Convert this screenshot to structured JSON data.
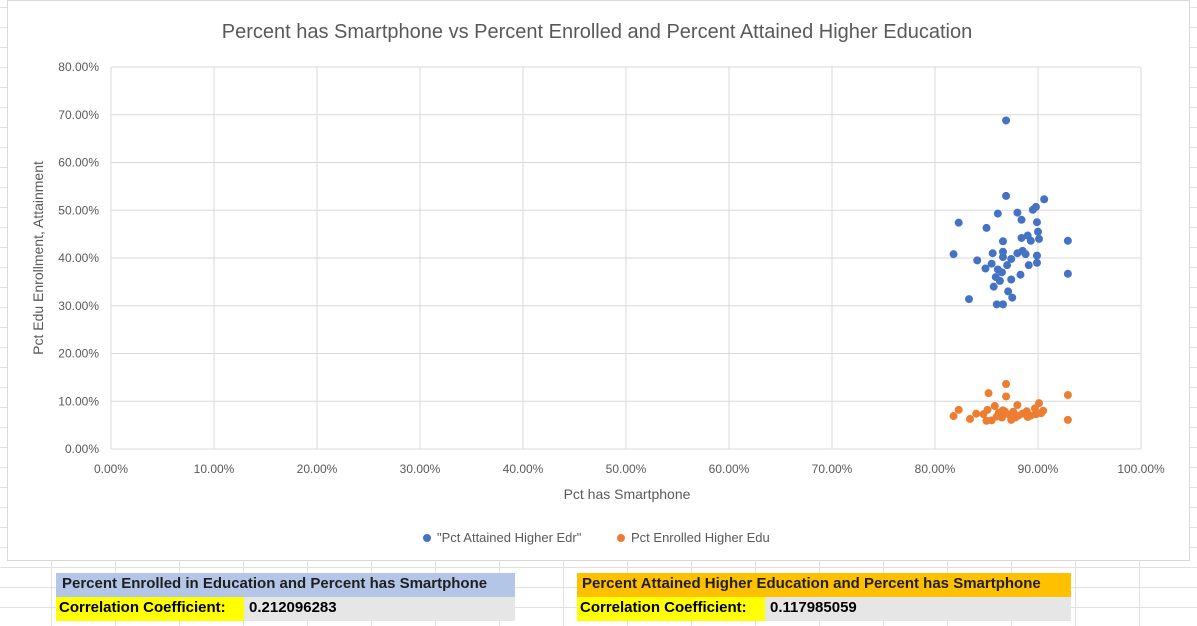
{
  "chart_data": {
    "type": "scatter",
    "title": "Percent has Smartphone vs Percent Enrolled and Percent Attained Higher Education",
    "xlabel": "Pct has Smartphone",
    "ylabel": "Pct Edu Enrollment, Attainment",
    "xlim": [
      0,
      1
    ],
    "ylim": [
      0,
      0.8
    ],
    "x_ticks": [
      "0.00%",
      "10.00%",
      "20.00%",
      "30.00%",
      "40.00%",
      "50.00%",
      "60.00%",
      "70.00%",
      "80.00%",
      "90.00%",
      "100.00%"
    ],
    "y_ticks": [
      "0.00%",
      "10.00%",
      "20.00%",
      "30.00%",
      "40.00%",
      "50.00%",
      "60.00%",
      "70.00%",
      "80.00%"
    ],
    "grid": true,
    "legend_position": "bottom",
    "series": [
      {
        "name": "\"Pct Attained Higher Edr\"",
        "color": "#4472c4",
        "points": [
          [
            0.869,
            0.688
          ],
          [
            0.869,
            0.53
          ],
          [
            0.906,
            0.523
          ],
          [
            0.898,
            0.507
          ],
          [
            0.895,
            0.501
          ],
          [
            0.861,
            0.493
          ],
          [
            0.88,
            0.495
          ],
          [
            0.823,
            0.474
          ],
          [
            0.884,
            0.48
          ],
          [
            0.899,
            0.475
          ],
          [
            0.85,
            0.463
          ],
          [
            0.9,
            0.455
          ],
          [
            0.89,
            0.447
          ],
          [
            0.901,
            0.44
          ],
          [
            0.866,
            0.435
          ],
          [
            0.884,
            0.442
          ],
          [
            0.893,
            0.436
          ],
          [
            0.929,
            0.436
          ],
          [
            0.885,
            0.415
          ],
          [
            0.866,
            0.413
          ],
          [
            0.88,
            0.41
          ],
          [
            0.888,
            0.408
          ],
          [
            0.818,
            0.408
          ],
          [
            0.856,
            0.41
          ],
          [
            0.899,
            0.405
          ],
          [
            0.866,
            0.402
          ],
          [
            0.841,
            0.395
          ],
          [
            0.874,
            0.398
          ],
          [
            0.855,
            0.388
          ],
          [
            0.891,
            0.385
          ],
          [
            0.899,
            0.39
          ],
          [
            0.87,
            0.385
          ],
          [
            0.849,
            0.378
          ],
          [
            0.861,
            0.376
          ],
          [
            0.865,
            0.37
          ],
          [
            0.859,
            0.36
          ],
          [
            0.883,
            0.365
          ],
          [
            0.874,
            0.355
          ],
          [
            0.929,
            0.367
          ],
          [
            0.863,
            0.352
          ],
          [
            0.857,
            0.34
          ],
          [
            0.871,
            0.33
          ],
          [
            0.833,
            0.314
          ],
          [
            0.875,
            0.317
          ],
          [
            0.86,
            0.303
          ],
          [
            0.866,
            0.303
          ]
        ]
      },
      {
        "name": "Pct Enrolled Higher Edu",
        "color": "#ed7d31",
        "points": [
          [
            0.869,
            0.136
          ],
          [
            0.852,
            0.117
          ],
          [
            0.929,
            0.113
          ],
          [
            0.869,
            0.11
          ],
          [
            0.901,
            0.096
          ],
          [
            0.88,
            0.092
          ],
          [
            0.858,
            0.09
          ],
          [
            0.823,
            0.082
          ],
          [
            0.851,
            0.082
          ],
          [
            0.876,
            0.078
          ],
          [
            0.889,
            0.079
          ],
          [
            0.905,
            0.08
          ],
          [
            0.897,
            0.085
          ],
          [
            0.862,
            0.076
          ],
          [
            0.84,
            0.074
          ],
          [
            0.872,
            0.072
          ],
          [
            0.881,
            0.07
          ],
          [
            0.818,
            0.069
          ],
          [
            0.893,
            0.07
          ],
          [
            0.865,
            0.066
          ],
          [
            0.834,
            0.063
          ],
          [
            0.855,
            0.06
          ],
          [
            0.874,
            0.061
          ],
          [
            0.929,
            0.061
          ],
          [
            0.847,
            0.073
          ],
          [
            0.86,
            0.068
          ],
          [
            0.885,
            0.074
          ],
          [
            0.898,
            0.073
          ],
          [
            0.866,
            0.081
          ],
          [
            0.878,
            0.066
          ],
          [
            0.89,
            0.067
          ],
          [
            0.85,
            0.059
          ],
          [
            0.868,
            0.078
          ],
          [
            0.903,
            0.075
          ]
        ]
      }
    ]
  },
  "table_left": {
    "header": "Percent Enrolled in Education and Percent has Smartphone",
    "label": "Correlation Coefficient:",
    "value": "0.212096283"
  },
  "table_right": {
    "header": "Percent Attained Higher Education and Percent has Smartphone",
    "label": "Correlation Coefficient:",
    "value": "0.117985059"
  },
  "colors": {
    "left_header_bg": "#b4c6e7",
    "right_header_bg": "#ffc000",
    "label_bg": "#ffff00",
    "value_bg": "#e7e6e6"
  }
}
